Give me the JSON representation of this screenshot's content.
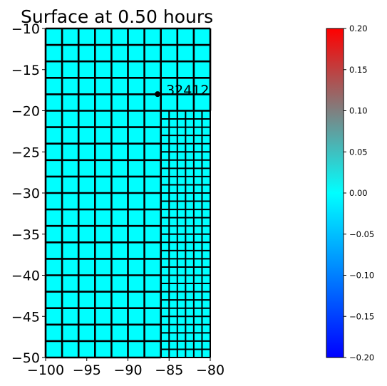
{
  "chart_data": {
    "type": "heatmap",
    "title": "Surface at 0.50 hours",
    "xlabel": "",
    "ylabel": "",
    "xlim": [
      -100,
      -80
    ],
    "ylim": [
      -50,
      -10
    ],
    "x_ticks": [
      -100,
      -95,
      -90,
      -85,
      -80
    ],
    "y_ticks": [
      -10,
      -15,
      -20,
      -25,
      -30,
      -35,
      -40,
      -45,
      -50
    ],
    "grid": false,
    "value_field": "surface",
    "cell_value": 0.0,
    "patches": [
      {
        "level": 1,
        "x_range": [
          -100,
          -86
        ],
        "y_range": [
          -50,
          -10
        ],
        "dx": 2,
        "dy": 2
      },
      {
        "level": 1,
        "x_range": [
          -86,
          -80
        ],
        "y_range": [
          -20,
          -10
        ],
        "dx": 2,
        "dy": 2
      },
      {
        "level": 2,
        "x_range": [
          -86,
          -80
        ],
        "y_range": [
          -50,
          -20
        ],
        "dx": 1,
        "dy": 1
      }
    ],
    "gauges": [
      {
        "id": "32412",
        "x": -86.4,
        "y": -17.98
      }
    ],
    "colorbar": {
      "min": -0.2,
      "max": 0.2,
      "ticks": [
        0.2,
        0.15,
        0.1,
        0.05,
        0.0,
        -0.05,
        -0.1,
        -0.15,
        -0.2
      ],
      "tick_labels": [
        "0.20",
        "0.15",
        "0.10",
        "0.05",
        "0.00",
        "−0.05",
        "−0.10",
        "−0.15",
        "−0.20"
      ],
      "colors": [
        "#0000ff",
        "#00ffff",
        "#ff0000"
      ]
    }
  }
}
